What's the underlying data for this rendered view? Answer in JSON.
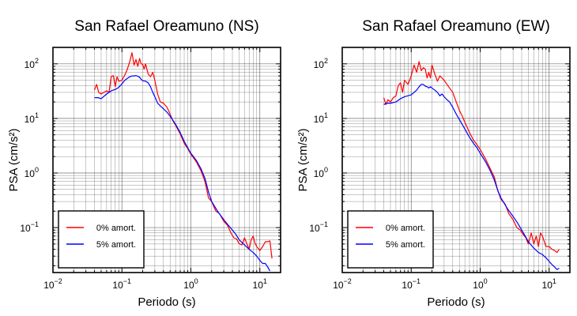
{
  "chart_data": [
    {
      "type": "line",
      "title": "San Rafael Oreamuno (NS)",
      "xlabel": "Periodo (s)",
      "ylabel": "PSA (cm/s²)",
      "xscale": "log",
      "yscale": "log",
      "xlim": [
        0.01,
        20
      ],
      "ylim": [
        0.015,
        200
      ],
      "xticks": [
        {
          "base": "10",
          "exp": "−2"
        },
        {
          "base": "10",
          "exp": "−1"
        },
        {
          "base": "10",
          "exp": "0"
        },
        {
          "base": "10",
          "exp": "1"
        }
      ],
      "yticks": [
        {
          "base": "10",
          "exp": "−1"
        },
        {
          "base": "10",
          "exp": "0"
        },
        {
          "base": "10",
          "exp": "1"
        },
        {
          "base": "10",
          "exp": "2"
        }
      ],
      "grid": true,
      "legend": {
        "position": "bottom-left"
      },
      "series": [
        {
          "name": "0% amort.",
          "color": "#ff0000",
          "x": [
            0.04,
            0.043,
            0.046,
            0.05,
            0.055,
            0.06,
            0.065,
            0.07,
            0.075,
            0.08,
            0.085,
            0.09,
            0.1,
            0.11,
            0.12,
            0.13,
            0.14,
            0.15,
            0.16,
            0.17,
            0.18,
            0.19,
            0.2,
            0.21,
            0.22,
            0.24,
            0.26,
            0.28,
            0.3,
            0.33,
            0.36,
            0.4,
            0.45,
            0.5,
            0.55,
            0.6,
            0.7,
            0.8,
            0.9,
            1.0,
            1.2,
            1.4,
            1.6,
            1.8,
            2.0,
            2.3,
            2.6,
            3.0,
            3.4,
            3.8,
            4.2,
            4.6,
            5.0,
            5.5,
            6.0,
            6.5,
            7.0,
            7.5,
            8.0,
            8.5,
            9.0,
            10.0,
            11.0,
            12.0,
            13.0,
            14.0,
            15.0
          ],
          "y": [
            33,
            42,
            30,
            28,
            30,
            32,
            30,
            58,
            61,
            38,
            58,
            48,
            50,
            62,
            80,
            110,
            160,
            95,
            120,
            90,
            125,
            100,
            98,
            80,
            100,
            65,
            58,
            70,
            50,
            28,
            20,
            19,
            16,
            12,
            9,
            7.5,
            5.2,
            3.5,
            2.8,
            2.2,
            1.6,
            1.1,
            0.7,
            0.35,
            0.3,
            0.2,
            0.18,
            0.13,
            0.11,
            0.08,
            0.065,
            0.062,
            0.051,
            0.048,
            0.065,
            0.05,
            0.04,
            0.06,
            0.07,
            0.052,
            0.045,
            0.038,
            0.045,
            0.055,
            0.055,
            0.057,
            0.027
          ]
        },
        {
          "name": "5% amort.",
          "color": "#0000ff",
          "x": [
            0.04,
            0.045,
            0.05,
            0.06,
            0.07,
            0.08,
            0.09,
            0.1,
            0.11,
            0.12,
            0.13,
            0.14,
            0.15,
            0.16,
            0.17,
            0.18,
            0.19,
            0.2,
            0.22,
            0.24,
            0.26,
            0.28,
            0.3,
            0.33,
            0.36,
            0.4,
            0.45,
            0.5,
            0.6,
            0.7,
            0.8,
            0.9,
            1.0,
            1.2,
            1.4,
            1.6,
            1.8,
            2.0,
            2.5,
            3.0,
            3.5,
            4.0,
            4.5,
            5.0,
            6.0,
            7.0,
            8.0,
            9.0,
            10.0,
            11.0,
            12.0,
            13.0,
            14.0
          ],
          "y": [
            24,
            24,
            23,
            28,
            32,
            34,
            37,
            43,
            50,
            54,
            58,
            60,
            60,
            61,
            59,
            57,
            52,
            49,
            48,
            45,
            38,
            30,
            25,
            19,
            17,
            15,
            13,
            11,
            7.8,
            5.5,
            3.8,
            2.9,
            2.3,
            1.7,
            1.2,
            0.8,
            0.45,
            0.3,
            0.19,
            0.14,
            0.11,
            0.09,
            0.075,
            0.06,
            0.048,
            0.04,
            0.035,
            0.03,
            0.025,
            0.022,
            0.022,
            0.019,
            0.016
          ]
        }
      ]
    },
    {
      "type": "line",
      "title": "San Rafael Oreamuno (EW)",
      "xlabel": "Periodo (s)",
      "ylabel": "PSA (cm/s²)",
      "xscale": "log",
      "yscale": "log",
      "xlim": [
        0.01,
        20
      ],
      "ylim": [
        0.015,
        200
      ],
      "xticks": [
        {
          "base": "10",
          "exp": "−2"
        },
        {
          "base": "10",
          "exp": "−1"
        },
        {
          "base": "10",
          "exp": "0"
        },
        {
          "base": "10",
          "exp": "1"
        }
      ],
      "yticks": [
        {
          "base": "10",
          "exp": "−1"
        },
        {
          "base": "10",
          "exp": "0"
        },
        {
          "base": "10",
          "exp": "1"
        },
        {
          "base": "10",
          "exp": "2"
        }
      ],
      "grid": true,
      "legend": {
        "position": "bottom-left"
      },
      "series": [
        {
          "name": "0% amort.",
          "color": "#ff0000",
          "x": [
            0.04,
            0.043,
            0.046,
            0.05,
            0.055,
            0.06,
            0.065,
            0.07,
            0.075,
            0.08,
            0.09,
            0.1,
            0.11,
            0.12,
            0.13,
            0.14,
            0.15,
            0.16,
            0.17,
            0.18,
            0.19,
            0.2,
            0.22,
            0.24,
            0.26,
            0.28,
            0.3,
            0.33,
            0.36,
            0.4,
            0.45,
            0.5,
            0.55,
            0.6,
            0.7,
            0.8,
            0.9,
            1.0,
            1.2,
            1.4,
            1.6,
            1.8,
            2.0,
            2.3,
            2.6,
            3.0,
            3.4,
            3.8,
            4.2,
            4.6,
            5.0,
            5.5,
            6.0,
            6.5,
            7.0,
            7.5,
            8.0,
            9.0,
            10.0,
            11.0,
            12.0,
            13.0,
            14.0
          ],
          "y": [
            24,
            18,
            22,
            20,
            24,
            26,
            40,
            45,
            30,
            50,
            42,
            60,
            95,
            70,
            110,
            75,
            85,
            80,
            55,
            70,
            55,
            95,
            65,
            48,
            60,
            55,
            50,
            42,
            36,
            30,
            20,
            14,
            11,
            8.5,
            5.5,
            4.0,
            3.3,
            2.7,
            1.8,
            1.2,
            0.85,
            0.48,
            0.33,
            0.27,
            0.18,
            0.14,
            0.1,
            0.09,
            0.075,
            0.065,
            0.05,
            0.08,
            0.05,
            0.07,
            0.045,
            0.08,
            0.07,
            0.045,
            0.045,
            0.04,
            0.038,
            0.035,
            0.04
          ]
        },
        {
          "name": "5% amort.",
          "color": "#0000ff",
          "x": [
            0.04,
            0.045,
            0.05,
            0.06,
            0.07,
            0.08,
            0.09,
            0.1,
            0.11,
            0.12,
            0.13,
            0.14,
            0.15,
            0.16,
            0.17,
            0.18,
            0.19,
            0.2,
            0.22,
            0.24,
            0.26,
            0.28,
            0.3,
            0.33,
            0.36,
            0.4,
            0.45,
            0.5,
            0.6,
            0.7,
            0.8,
            0.9,
            1.0,
            1.2,
            1.4,
            1.6,
            1.8,
            2.0,
            2.5,
            3.0,
            3.5,
            4.0,
            4.5,
            5.0,
            6.0,
            7.0,
            8.0,
            9.0,
            10.0,
            11.0,
            12.0,
            13.0,
            14.0
          ],
          "y": [
            18,
            19,
            19,
            20,
            23,
            25,
            26,
            27,
            30,
            33,
            38,
            42,
            42,
            39,
            38,
            36,
            38,
            36,
            33,
            30,
            26,
            28,
            25,
            22,
            20,
            16,
            12,
            9.5,
            6.4,
            4.5,
            3.5,
            2.9,
            2.3,
            1.6,
            1.1,
            0.75,
            0.48,
            0.35,
            0.22,
            0.16,
            0.12,
            0.09,
            0.07,
            0.055,
            0.042,
            0.035,
            0.032,
            0.028,
            0.024,
            0.021,
            0.019,
            0.017,
            0.018
          ]
        }
      ]
    }
  ]
}
